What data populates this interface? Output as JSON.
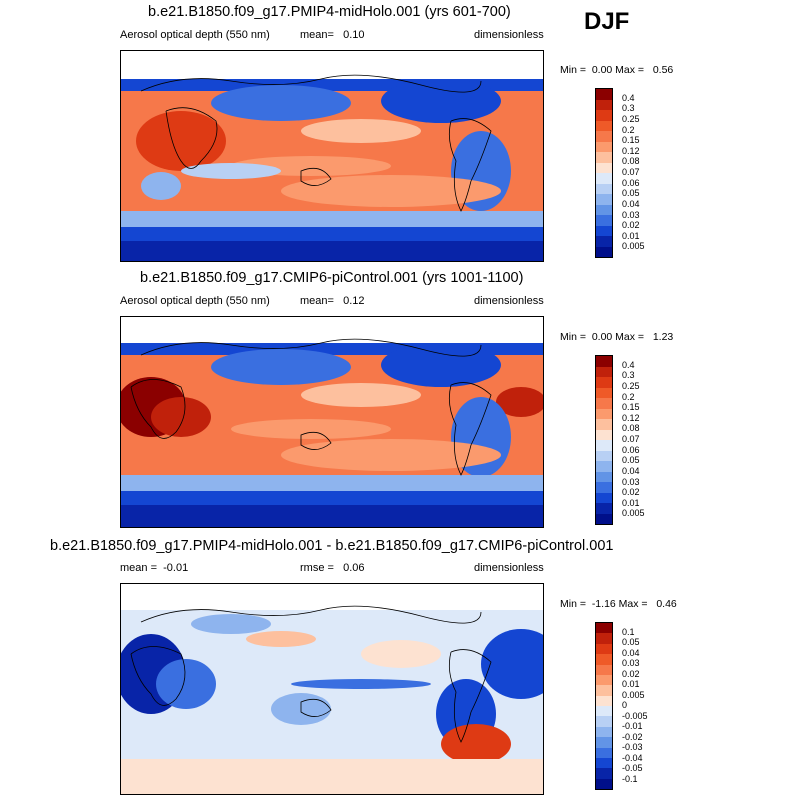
{
  "season": "DJF",
  "panels": [
    {
      "id": "midholo",
      "title": "b.e21.B1850.f09_g17.PMIP4-midHolo.001 (yrs 601-700)",
      "left_label": "Aerosol optical depth (550 nm)",
      "center_label": "mean=",
      "center_value": "0.10",
      "right_label": "dimensionless",
      "min_label": "Min =",
      "min_value": "0.00",
      "max_label": "Max =",
      "max_value": "0.56",
      "colorbar": {
        "labels": [
          "0.4",
          "0.3",
          "0.25",
          "0.2",
          "0.15",
          "0.12",
          "0.08",
          "0.07",
          "0.06",
          "0.05",
          "0.04",
          "0.03",
          "0.02",
          "0.01",
          "0.005"
        ],
        "colors": [
          "#8b0000",
          "#c0210b",
          "#de3a14",
          "#ef5a28",
          "#f6784a",
          "#fb9a6d",
          "#fdc09e",
          "#fde2d1",
          "#dde9f9",
          "#b8d0f4",
          "#8eb4ee",
          "#6294e6",
          "#3a6fe0",
          "#1446d2",
          "#0824a8",
          "#000f8a"
        ]
      }
    },
    {
      "id": "picontrol",
      "title": "b.e21.B1850.f09_g17.CMIP6-piControl.001 (yrs 1001-1100)",
      "left_label": "Aerosol optical depth (550 nm)",
      "center_label": "mean=",
      "center_value": "0.12",
      "right_label": "dimensionless",
      "min_label": "Min =",
      "min_value": "0.00",
      "max_label": "Max =",
      "max_value": "1.23",
      "colorbar": {
        "labels": [
          "0.4",
          "0.3",
          "0.25",
          "0.2",
          "0.15",
          "0.12",
          "0.08",
          "0.07",
          "0.06",
          "0.05",
          "0.04",
          "0.03",
          "0.02",
          "0.01",
          "0.005"
        ],
        "colors": [
          "#8b0000",
          "#c0210b",
          "#de3a14",
          "#ef5a28",
          "#f6784a",
          "#fb9a6d",
          "#fdc09e",
          "#fde2d1",
          "#dde9f9",
          "#b8d0f4",
          "#8eb4ee",
          "#6294e6",
          "#3a6fe0",
          "#1446d2",
          "#0824a8",
          "#000f8a"
        ]
      }
    },
    {
      "id": "difference",
      "title": "b.e21.B1850.f09_g17.PMIP4-midHolo.001 - b.e21.B1850.f09_g17.CMIP6-piControl.001",
      "left_label": "mean =",
      "left_value": "-0.01",
      "center_label": "rmse =",
      "center_value": "0.06",
      "right_label": "dimensionless",
      "min_label": "Min =",
      "min_value": "-1.16",
      "max_label": "Max =",
      "max_value": "0.46",
      "colorbar": {
        "labels": [
          "0.1",
          "0.05",
          "0.04",
          "0.03",
          "0.02",
          "0.01",
          "0.005",
          "0",
          "-0.005",
          "-0.01",
          "-0.02",
          "-0.03",
          "-0.04",
          "-0.05",
          "-0.1"
        ],
        "colors": [
          "#8b0000",
          "#c0210b",
          "#de3a14",
          "#ef5a28",
          "#f6784a",
          "#fb9a6d",
          "#fdc09e",
          "#fde2d1",
          "#dde9f9",
          "#b8d0f4",
          "#8eb4ee",
          "#6294e6",
          "#3a6fe0",
          "#1446d2",
          "#0824a8",
          "#000f8a"
        ]
      }
    }
  ]
}
